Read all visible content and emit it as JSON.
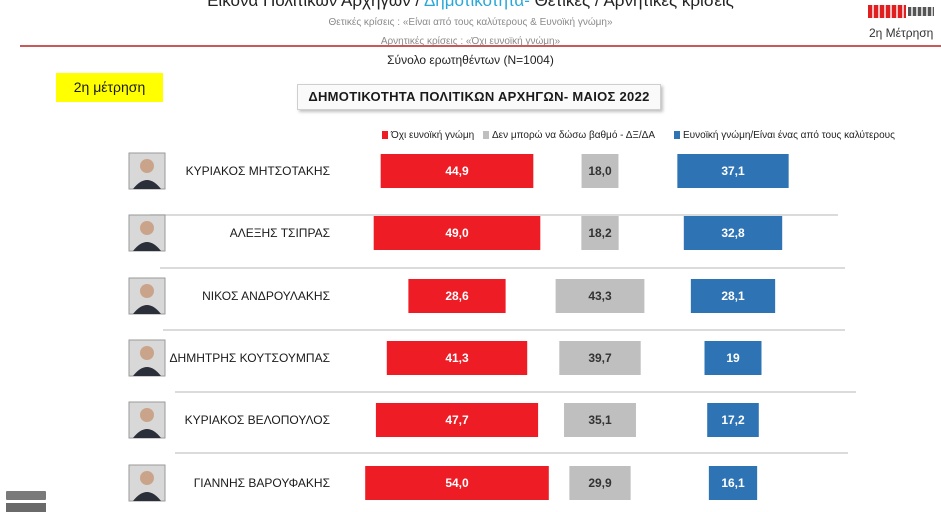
{
  "header": {
    "title_part1": "Εικόνα Πολιτικών Αρχηγών  /",
    "title_part2": "Δημοτικότητα-",
    "title_part3": "Θετικές / Αρνητικές κρίσεις",
    "note_positive": "Θετικές κρίσεις : «Είναι από τους καλύτερους &  Ευνοϊκή γνώμη»",
    "note_negative": "Αρνητικές κρίσεις : «Όχι ευνοϊκή γνώμη»",
    "total_respondents": "Σύνολο ερωτηθέντων (N=1004)",
    "corner_label": "2η Μέτρηση"
  },
  "badge": {
    "label": "2η μέτρηση"
  },
  "chart_data": {
    "type": "bar",
    "title": "ΔΗΜΟΤΙΚΟΤΗΤΑ  ΠΟΛΙΤΙΚΩΝ ΑΡΧΗΓΩΝ- ΜΑΙΟΣ 2022",
    "categories": [
      "ΚΥΡΙΑΚΟΣ ΜΗΤΣΟΤΑΚΗΣ",
      "ΑΛΕΞΗΣ ΤΣΙΠΡΑΣ",
      "ΝΙΚΟΣ ΑΝΔΡΟΥΛΑΚΗΣ",
      "ΔΗΜΗΤΡΗΣ ΚΟΥΤΣΟΥΜΠΑΣ",
      "ΚΥΡΙΑΚΟΣ ΒΕΛΟΠΟΥΛΟΣ",
      "ΓΙΑΝΝΗΣ ΒΑΡΟΥΦΑΚΗΣ"
    ],
    "series": [
      {
        "name": "Όχι ευνοϊκή γνώμη",
        "color": "#ee1c25",
        "values": [
          44.9,
          49.0,
          28.6,
          41.3,
          47.7,
          54.0
        ],
        "labels": [
          "44,9",
          "49,0",
          "28,6",
          "41,3",
          "47,7",
          "54,0"
        ]
      },
      {
        "name": "Δεν μπορώ να δώσω βαθμό - ΔΞ/ΔΑ",
        "color": "#bfbfbf",
        "values": [
          18.0,
          18.2,
          43.3,
          39.7,
          35.1,
          29.9
        ],
        "labels": [
          "18,0",
          "18,2",
          "43,3",
          "39,7",
          "35,1",
          "29,9"
        ]
      },
      {
        "name": "Ευνοϊκή γνώμη/Είναι ένας από τους καλύτερους",
        "color": "#2e74b5",
        "values": [
          37.1,
          32.8,
          28.1,
          19,
          17.2,
          16.1
        ],
        "labels": [
          "37,1",
          "32,8",
          "28,1",
          "19",
          "17,2",
          "16,1"
        ]
      }
    ],
    "legend_position": "top",
    "grid": false
  }
}
